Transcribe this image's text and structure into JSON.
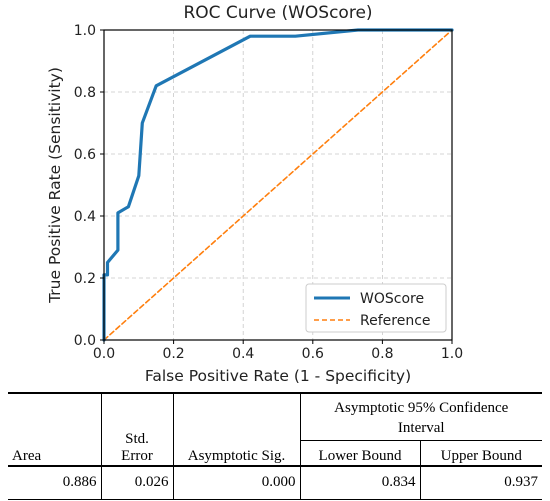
{
  "chart_data": {
    "type": "line",
    "title": "ROC Curve (WOScore)",
    "xlabel": "False Positive Rate (1 - Specificity)",
    "ylabel": "True Positive Rate (Sensitivity)",
    "xlim": [
      0,
      1
    ],
    "ylim": [
      0,
      1
    ],
    "xticks": [
      "0.0",
      "0.2",
      "0.4",
      "0.6",
      "0.8",
      "1.0"
    ],
    "yticks": [
      "0.0",
      "0.2",
      "0.4",
      "0.6",
      "0.8",
      "1.0"
    ],
    "grid": true,
    "legend_position": "bottom-right",
    "series": [
      {
        "name": "WOScore",
        "color": "#1f77b4",
        "style": "solid",
        "x": [
          0.0,
          0.0,
          0.0,
          0.01,
          0.01,
          0.04,
          0.04,
          0.07,
          0.1,
          0.11,
          0.15,
          0.42,
          0.55,
          0.73,
          1.0
        ],
        "y": [
          0.0,
          0.04,
          0.21,
          0.21,
          0.25,
          0.29,
          0.41,
          0.43,
          0.53,
          0.7,
          0.82,
          0.98,
          0.98,
          1.0,
          1.0
        ]
      },
      {
        "name": "Reference",
        "color": "#ff7f0e",
        "style": "dashed",
        "x": [
          0,
          1
        ],
        "y": [
          0,
          1
        ]
      }
    ]
  },
  "table": {
    "headers": {
      "area": "Area",
      "std_error_line1": "Std.",
      "std_error_line2": "Error",
      "asymptotic_sig": "Asymptotic Sig.",
      "ci_group": "Asymptotic 95% Confidence Interval",
      "lower_bound": "Lower Bound",
      "upper_bound": "Upper Bound"
    },
    "row": {
      "area": "0.886",
      "std_error": "0.026",
      "asymptotic_sig": "0.000",
      "lower_bound": "0.834",
      "upper_bound": "0.937"
    }
  }
}
